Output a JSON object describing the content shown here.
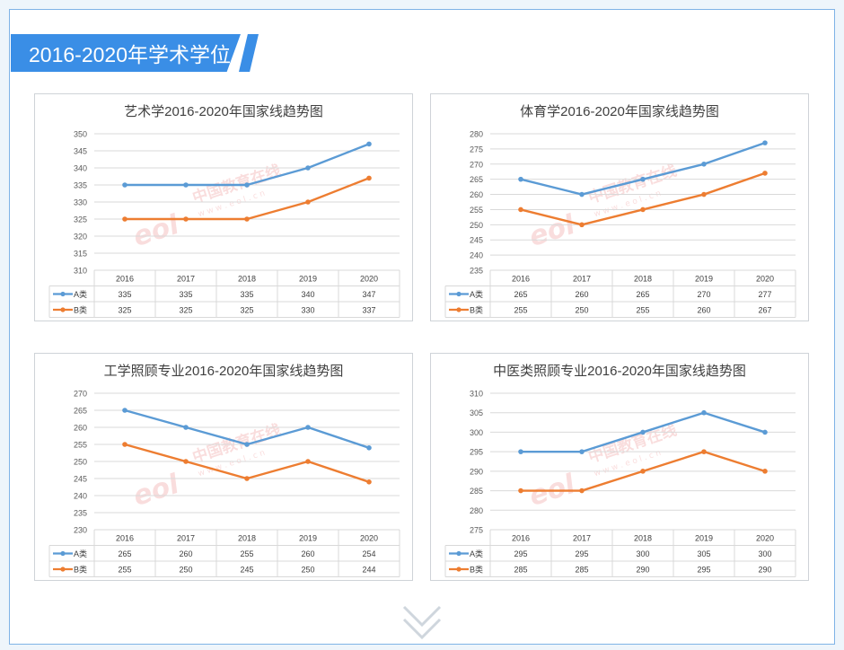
{
  "section": {
    "title": "2016-2020年学术学位"
  },
  "watermark": {
    "cn": "中国教育在线",
    "en": "w w w . e o l . c n",
    "logo": "eol"
  },
  "colors": {
    "a": "#5b9bd5",
    "b": "#ed7d31",
    "banner": "#3a8ee6",
    "grid": "#d9d9d9"
  },
  "chart_data": [
    {
      "type": "line",
      "title": "艺术学2016-2020年国家线趋势图",
      "categories": [
        "2016",
        "2017",
        "2018",
        "2019",
        "2020"
      ],
      "series": [
        {
          "name": "A类",
          "values": [
            335,
            335,
            335,
            340,
            347
          ]
        },
        {
          "name": "B类",
          "values": [
            325,
            325,
            325,
            330,
            337
          ]
        }
      ],
      "ylim": [
        310,
        350
      ],
      "yticks": [
        "350",
        "345",
        "340",
        "335",
        "330",
        "325",
        "320",
        "315",
        "310"
      ],
      "grid": true,
      "legend": "data-table"
    },
    {
      "type": "line",
      "title": "体育学2016-2020年国家线趋势图",
      "categories": [
        "2016",
        "2017",
        "2018",
        "2019",
        "2020"
      ],
      "series": [
        {
          "name": "A类",
          "values": [
            265,
            260,
            265,
            270,
            277
          ]
        },
        {
          "name": "B类",
          "values": [
            255,
            250,
            255,
            260,
            267
          ]
        }
      ],
      "ylim": [
        235,
        280
      ],
      "yticks": [
        "280",
        "275",
        "270",
        "265",
        "260",
        "255",
        "250",
        "245",
        "240",
        "235"
      ],
      "grid": true,
      "legend": "data-table"
    },
    {
      "type": "line",
      "title": "工学照顾专业2016-2020年国家线趋势图",
      "categories": [
        "2016",
        "2017",
        "2018",
        "2019",
        "2020"
      ],
      "series": [
        {
          "name": "A类",
          "values": [
            265,
            260,
            255,
            260,
            254
          ]
        },
        {
          "name": "B类",
          "values": [
            255,
            250,
            245,
            250,
            244
          ]
        }
      ],
      "ylim": [
        230,
        270
      ],
      "yticks": [
        "270",
        "265",
        "260",
        "255",
        "250",
        "245",
        "240",
        "235",
        "230"
      ],
      "grid": true,
      "legend": "data-table"
    },
    {
      "type": "line",
      "title": "中医类照顾专业2016-2020年国家线趋势图",
      "categories": [
        "2016",
        "2017",
        "2018",
        "2019",
        "2020"
      ],
      "series": [
        {
          "name": "A类",
          "values": [
            295,
            295,
            300,
            305,
            300
          ]
        },
        {
          "name": "B类",
          "values": [
            285,
            285,
            290,
            295,
            290
          ]
        }
      ],
      "ylim": [
        275,
        310
      ],
      "yticks": [
        "310",
        "305",
        "300",
        "295",
        "290",
        "285",
        "280",
        "275"
      ],
      "grid": true,
      "legend": "data-table"
    }
  ]
}
